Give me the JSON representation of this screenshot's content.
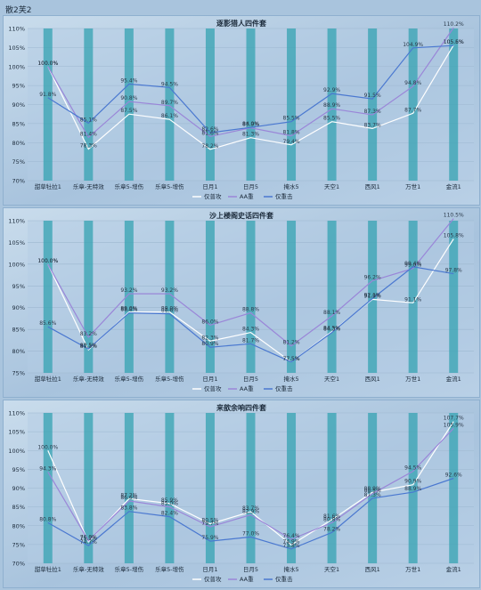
{
  "page": {
    "title": "散2芙2"
  },
  "colors": {
    "series": [
      "#ffffff",
      "#9a86d8",
      "#4a78d0"
    ],
    "bar": "#3aa4b4",
    "panel_bg": "#bcd2e6"
  },
  "chart_data": [
    {
      "type": "line",
      "title": "逐影猎人四件套",
      "categories": [
        "甜草牡拉1",
        "乐章-无特效",
        "乐章5-增伤",
        "乐章5-增伤",
        "日月1",
        "日月5",
        "掩水5",
        "天空1",
        "西风1",
        "万世1",
        "金流1"
      ],
      "ylim": [
        70,
        110
      ],
      "yticks": [
        "70%",
        "75%",
        "80%",
        "85%",
        "90%",
        "95%",
        "100%",
        "105%",
        "110%"
      ],
      "legend": [
        "仅普攻",
        "AA重",
        "仅重击"
      ],
      "legend_position": "bottom",
      "series": [
        {
          "name": "仅普攻",
          "values": [
            100.0,
            78.3,
            87.5,
            86.1,
            78.2,
            81.3,
            79.4,
            85.5,
            83.7,
            87.7,
            105.6
          ]
        },
        {
          "name": "AA重",
          "values": [
            100.0,
            81.4,
            90.8,
            89.7,
            81.6,
            83.9,
            81.8,
            88.9,
            87.3,
            94.8,
            110.2
          ]
        },
        {
          "name": "仅重击",
          "values": [
            91.8,
            85.1,
            95.4,
            94.5,
            82.6,
            84.0,
            85.5,
            92.9,
            91.5,
            104.9,
            105.5
          ]
        }
      ],
      "labels": [
        [
          "100.0%",
          "78.3%",
          "87.5%",
          "86.1%",
          "78.2%",
          "81.3%",
          "79.4%",
          "85.5%",
          "83.7%",
          "87.7%",
          "105.6%"
        ],
        [
          "100.0%",
          "81.4%",
          "90.8%",
          "89.7%",
          "81.6%",
          "83.9%",
          "81.8%",
          "88.9%",
          "87.3%",
          "94.8%",
          "110.2%"
        ],
        [
          "91.8%",
          "85.1%",
          "95.4%",
          "94.5%",
          "82.6%",
          "84.0%",
          "85.5%",
          "92.9%",
          "91.5%",
          "104.9%",
          "105.5%"
        ]
      ]
    },
    {
      "type": "line",
      "title": "沙上楼阁史话四件套",
      "categories": [
        "甜草牡拉1",
        "乐章-无特效",
        "乐章5-增伤",
        "乐章5-增伤",
        "日月1",
        "日月5",
        "掩水5",
        "天空1",
        "西风1",
        "万世1",
        "金流1"
      ],
      "ylim": [
        75,
        110
      ],
      "yticks": [
        "75%",
        "80%",
        "85%",
        "90%",
        "95%",
        "100%",
        "105%",
        "110%"
      ],
      "legend": [
        "仅普攻",
        "AA重",
        "仅重击"
      ],
      "legend_position": "bottom",
      "series": [
        {
          "name": "仅普攻",
          "values": [
            100.0,
            80.3,
            89.0,
            89.0,
            82.3,
            84.3,
            77.5,
            84.5,
            91.9,
            91.1,
            105.8
          ]
        },
        {
          "name": "AA重",
          "values": [
            100.0,
            83.2,
            93.2,
            93.2,
            86.0,
            88.8,
            81.2,
            88.1,
            96.2,
            99.0,
            110.5
          ]
        },
        {
          "name": "仅重击",
          "values": [
            85.6,
            80.5,
            88.8,
            88.6,
            80.9,
            81.7,
            77.5,
            84.3,
            92.1,
            99.4,
            97.8
          ]
        }
      ],
      "labels": [
        [
          "100.0%",
          "80.3%",
          "89.0%",
          "89.0%",
          "82.3%",
          "84.3%",
          "77.5%",
          "84.5%",
          "91.9%",
          "91.1%",
          "105.8%"
        ],
        [
          "100.0%",
          "83.2%",
          "93.2%",
          "93.2%",
          "86.0%",
          "88.8%",
          "81.2%",
          "88.1%",
          "96.2%",
          "99.0%",
          "110.5%"
        ],
        [
          "85.6%",
          "80.5%",
          "88.8%",
          "88.6%",
          "80.9%",
          "81.7%",
          "77.5%",
          "84.3%",
          "92.1%",
          "99.4%",
          "97.8%"
        ]
      ]
    },
    {
      "type": "line",
      "title": "来歆余响四件套",
      "categories": [
        "甜草牡拉1",
        "乐章-无特效",
        "乐章5-增伤",
        "乐章5-增伤",
        "日月1",
        "日月5",
        "掩水5",
        "天空1",
        "西风1",
        "万世1",
        "金流1"
      ],
      "ylim": [
        70,
        110
      ],
      "yticks": [
        "70%",
        "75%",
        "80%",
        "85%",
        "90%",
        "95%",
        "100%",
        "105%",
        "110%"
      ],
      "legend": [
        "仅普攻",
        "AA重",
        "仅重击"
      ],
      "legend_position": "bottom",
      "series": [
        {
          "name": "仅普攻",
          "values": [
            100.0,
            75.7,
            87.2,
            85.9,
            80.5,
            83.7,
            74.9,
            81.6,
            88.9,
            90.9,
            107.7
          ]
        },
        {
          "name": "AA重",
          "values": [
            94.3,
            76.0,
            86.6,
            85.0,
            79.7,
            82.9,
            76.4,
            80.8,
            88.5,
            94.5,
            105.9
          ]
        },
        {
          "name": "仅重击",
          "values": [
            80.8,
            74.7,
            83.8,
            82.4,
            75.9,
            77.0,
            73.8,
            78.2,
            87.3,
            88.9,
            92.6
          ]
        }
      ],
      "labels": [
        [
          "100.0%",
          "75.7%",
          "87.2%",
          "85.9%",
          "80.5%",
          "83.7%",
          "74.9%",
          "81.6%",
          "88.9%",
          "90.9%",
          "107.7%"
        ],
        [
          "94.3%",
          "76.0%",
          "86.6%",
          "85.0%",
          "79.7%",
          "82.9%",
          "76.4%",
          "80.8%",
          "88.5%",
          "94.5%",
          "105.9%"
        ],
        [
          "80.8%",
          "74.7%",
          "83.8%",
          "82.4%",
          "75.9%",
          "77.0%",
          "73.8%",
          "78.2%",
          "87.3%",
          "88.9%",
          "92.6%"
        ]
      ]
    }
  ]
}
